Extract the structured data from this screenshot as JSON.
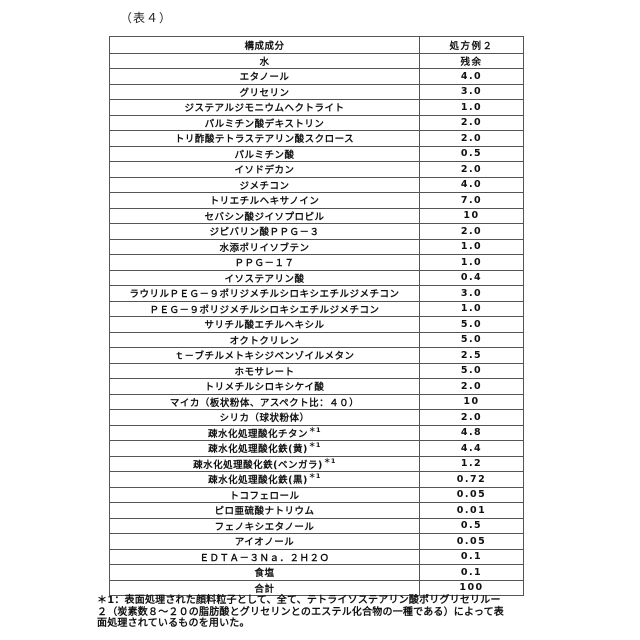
{
  "page": {
    "caption": "（表４）"
  },
  "table": {
    "header": {
      "component": "構成成分",
      "example": "処方例２"
    },
    "rows": [
      {
        "name": "水",
        "value": "残余"
      },
      {
        "name": "エタノール",
        "value": "4.0"
      },
      {
        "name": "グリセリン",
        "value": "3.0"
      },
      {
        "name": "ジステアルジモニウムヘクトライト",
        "value": "1.0"
      },
      {
        "name": "パルミチン酸デキストリン",
        "value": "2.0"
      },
      {
        "name": "トリ酢酸テトラステアリン酸スクロース",
        "value": "2.0"
      },
      {
        "name": "パルミチン酸",
        "value": "0.5"
      },
      {
        "name": "イソドデカン",
        "value": "2.0"
      },
      {
        "name": "ジメチコン",
        "value": "4.0"
      },
      {
        "name": "トリエチルヘキサノイン",
        "value": "7.0"
      },
      {
        "name": "セバシン酸ジイソプロピル",
        "value": "10"
      },
      {
        "name": "ジピバリン酸ＰＰＧ－３",
        "value": "2.0"
      },
      {
        "name": "水添ポリイソブテン",
        "value": "1.0"
      },
      {
        "name": "ＰＰＧ－１７",
        "value": "1.0"
      },
      {
        "name": "イソステアリン酸",
        "value": "0.4"
      },
      {
        "name": "ラウリルＰＥＧ－９ポリジメチルシロキシエチルジメチコン",
        "value": "3.0"
      },
      {
        "name": "ＰＥＧ－９ポリジメチルシロキシエチルジメチコン",
        "value": "1.0"
      },
      {
        "name": "サリチル酸エチルヘキシル",
        "value": "5.0"
      },
      {
        "name": "オクトクリレン",
        "value": "5.0"
      },
      {
        "name": "ｔ－ブチルメトキシジベンゾイルメタン",
        "value": "2.5"
      },
      {
        "name": "ホモサレート",
        "value": "5.0"
      },
      {
        "name": "トリメチルシロキシケイ酸",
        "value": "2.0"
      },
      {
        "name": "マイカ（板状粉体、アスペクト比：４０）",
        "value": "10"
      },
      {
        "name": "シリカ（球状粉体）",
        "value": "2.0"
      },
      {
        "name": "疎水化処理酸化チタン",
        "sup": "＊1",
        "value": "4.8"
      },
      {
        "name": "疎水化処理酸化鉄(黄)",
        "sup": "＊1",
        "value": "4.4"
      },
      {
        "name": "疎水化処理酸化鉄(ベンガラ)",
        "sup": "＊1",
        "value": "1.2"
      },
      {
        "name": "疎水化処理酸化鉄(黒)",
        "sup": "＊1",
        "value": "0.72"
      },
      {
        "name": "トコフェロール",
        "value": "0.05"
      },
      {
        "name": "ピロ亜硫酸ナトリウム",
        "value": "0.01"
      },
      {
        "name": "フェノキシエタノール",
        "value": "0.5"
      },
      {
        "name": "アイオノール",
        "value": "0.05"
      },
      {
        "name": "ＥＤＴＡ－３Ｎａ．２Ｈ２Ｏ",
        "value": "0.1"
      },
      {
        "name": "食塩",
        "value": "0.1"
      },
      {
        "name": "合計",
        "value": "100"
      }
    ]
  },
  "footnote": {
    "lines": [
      "＊1：表面処理された顔料粒子として、全て、テトライソステアリン酸ポリグリセリルー",
      "２（炭素数８～２０の脂肪酸とグリセリンとのエステル化合物の一種である）によって表",
      "面処理されているものを用いた。"
    ]
  }
}
